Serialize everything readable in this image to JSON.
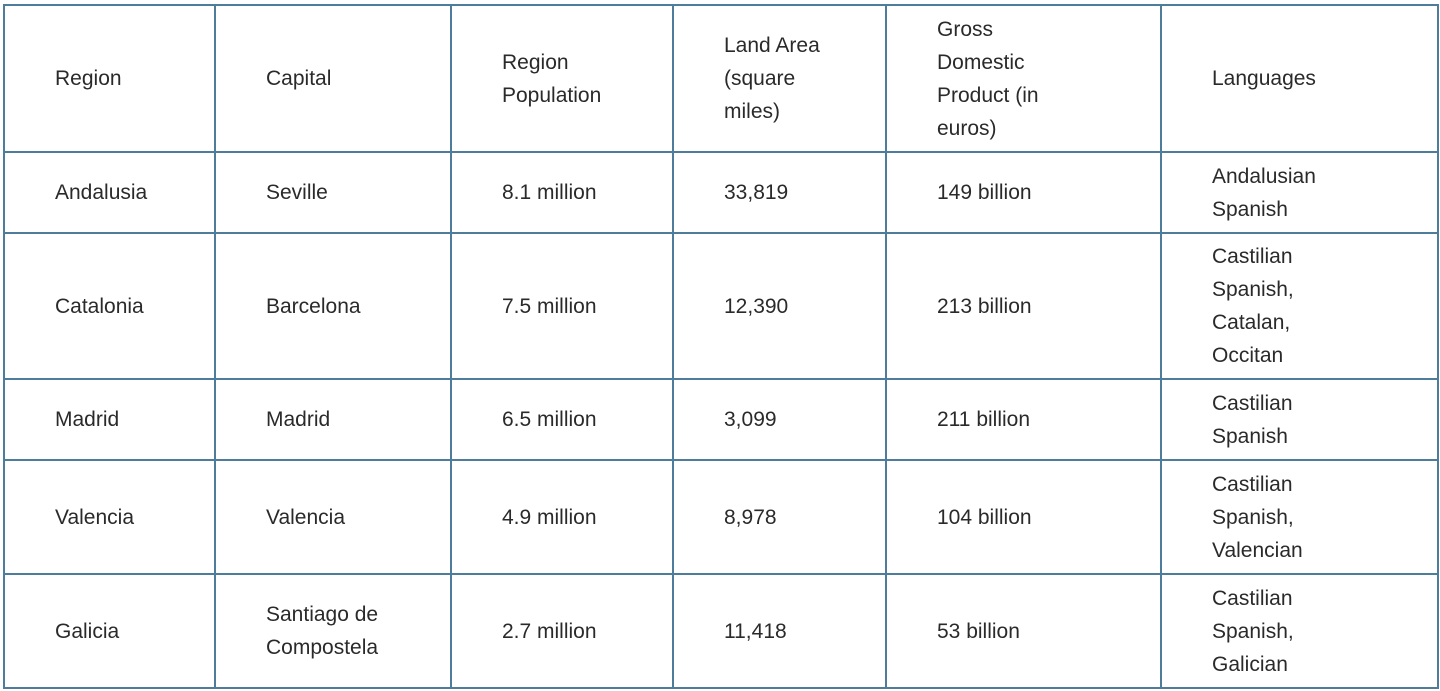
{
  "table": {
    "header": [
      "Region",
      "Capital",
      "Region Population",
      "Land Area (square miles)",
      "Gross Domestic Product (in euros)",
      "Languages"
    ],
    "rows": [
      [
        "Andalusia",
        "Seville",
        "8.1 million",
        "33,819",
        "149 billion",
        "Andalusian Spanish"
      ],
      [
        "Catalonia",
        "Barcelona",
        "7.5 million",
        "12,390",
        "213 billion",
        "Castilian Spanish, Catalan, Occitan"
      ],
      [
        "Madrid",
        "Madrid",
        "6.5 million",
        "3,099",
        "211 billion",
        "Castilian Spanish"
      ],
      [
        "Valencia",
        "Valencia",
        "4.9 million",
        "8,978",
        "104 billion",
        "Castilian Spanish, Valencian"
      ],
      [
        "Galicia",
        "Santiago de Compostela",
        "2.7 million",
        "11,418",
        "53 billion",
        "Castilian Spanish, Galician"
      ]
    ]
  }
}
